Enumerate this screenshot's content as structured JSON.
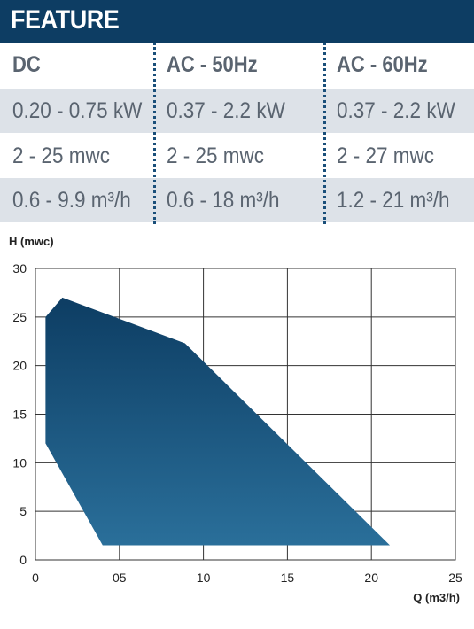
{
  "header": {
    "title": "FEATURE"
  },
  "table": {
    "columns": [
      "DC",
      "AC - 50Hz",
      "AC - 60Hz"
    ],
    "rows": [
      [
        "0.20 - 0.75 kW",
        "0.37 - 2.2 kW",
        "0.37 - 2.2 kW"
      ],
      [
        "2 - 25 mwc",
        "2 - 25 mwc",
        "2 - 27 mwc"
      ],
      [
        "0.6 - 9.9 m³/h",
        "0.6 - 18 m³/h",
        "1.2 - 21 m³/h"
      ]
    ]
  },
  "chart_data": {
    "type": "area",
    "ylabel": "H (mwc)",
    "xlabel": "Q (m3/h)",
    "xlim": [
      0,
      25
    ],
    "ylim": [
      0,
      30
    ],
    "x_ticks": [
      "0",
      "05",
      "10",
      "15",
      "20",
      "25"
    ],
    "y_ticks": [
      "0",
      "5",
      "10",
      "15",
      "20",
      "25",
      "30"
    ],
    "grid": true,
    "fill_color_top": "#0d3d63",
    "fill_color_bottom": "#2a6f9a",
    "series": [
      {
        "x": [
          0.6,
          1.6,
          8.9,
          21.1,
          4.0,
          0.6
        ],
        "y": [
          25.0,
          27.0,
          22.3,
          1.5,
          1.5,
          12.0
        ]
      }
    ]
  }
}
